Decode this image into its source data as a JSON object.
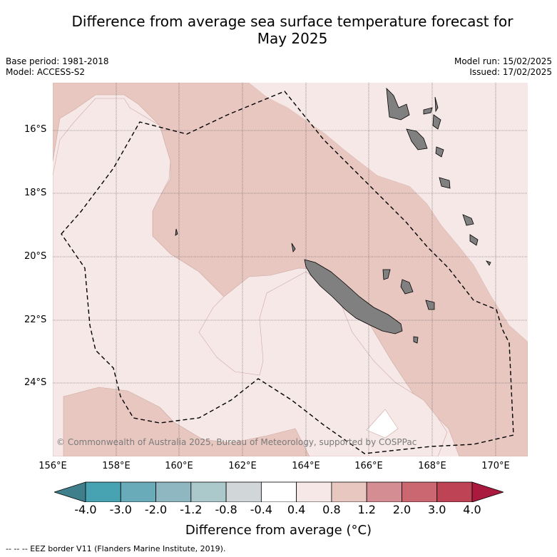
{
  "title_line1": "Difference from average sea surface temperature forecast for",
  "title_line2": "May 2025",
  "base_period": "Base period: 1981-2018",
  "model": "Model: ACCESS-S2",
  "model_run": "Model run: 15/02/2025",
  "issued": "Issued: 17/02/2025",
  "copyright": "© Commonwealth of Australia 2025, Bureau of Meteorology, supported by COSPPac",
  "lat_labels": [
    "16°S",
    "18°S",
    "20°S",
    "22°S",
    "24°S"
  ],
  "lon_labels": [
    "156°E",
    "158°E",
    "160°E",
    "162°E",
    "164°E",
    "166°E",
    "168°E",
    "170°E"
  ],
  "colorbar": {
    "labels": [
      "-4.0",
      "-3.0",
      "-2.0",
      "-1.2",
      "-0.8",
      "-0.4",
      "0.4",
      "0.8",
      "1.2",
      "2.0",
      "3.0",
      "4.0"
    ],
    "colors": [
      "#3f7f8c",
      "#47a3b1",
      "#6aabb9",
      "#8fb7c1",
      "#abc8cb",
      "#d1d6d8",
      "#ffffff",
      "#f5e8e6",
      "#e8c7c1",
      "#d58d94",
      "#cb6771",
      "#bd4355",
      "#a91a3e"
    ],
    "title": "Difference from average (°C)"
  },
  "map_colors": {
    "band_0_4_to_0_8": "#f5e8e6",
    "band_0_8_to_1_2": "#e8c7c1",
    "band_neg_0_4_to_0_4": "#ffffff",
    "land": "#808080"
  },
  "eez_legend": "--  --  -- EEZ border V11 (Flanders Marine Institute, 2019)."
}
